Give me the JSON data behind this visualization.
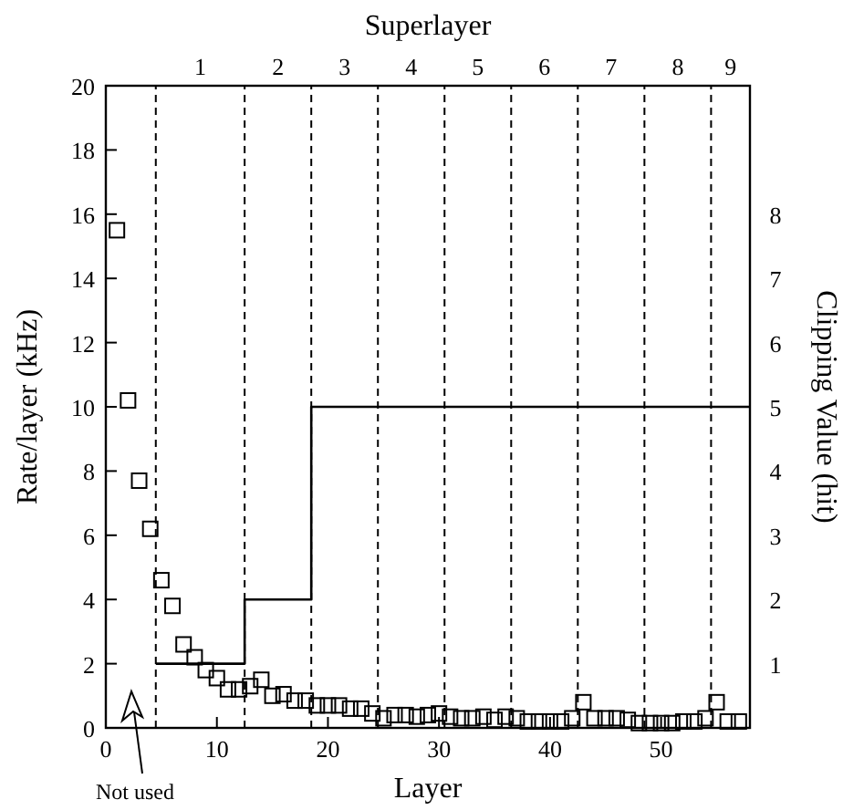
{
  "chart_data": {
    "type": "scatter",
    "xlabel": "Layer",
    "ylabel": "Rate/layer (kHz)",
    "y2label": "Clipping Value (hit)",
    "x2label": "Superlayer",
    "xlim": [
      0,
      58
    ],
    "xticks": [
      0,
      10,
      20,
      30,
      40,
      50
    ],
    "ylim": [
      0,
      20
    ],
    "yticks": [
      0,
      2,
      4,
      6,
      8,
      10,
      12,
      14,
      16,
      18,
      20
    ],
    "y2lim": [
      0,
      10
    ],
    "y2ticks": [
      1,
      2,
      3,
      4,
      5,
      6,
      7,
      8
    ],
    "marker": "square",
    "grid": false,
    "series": [
      {
        "color": "#000000",
        "x": [
          1,
          2,
          3,
          4,
          5,
          6,
          7,
          8,
          9,
          10,
          11,
          12,
          13,
          14,
          15,
          16,
          17,
          18,
          19,
          20,
          21,
          22,
          23,
          24,
          25,
          26,
          27,
          28,
          29,
          30,
          31,
          32,
          33,
          34,
          35,
          36,
          37,
          38,
          39,
          40,
          41,
          42,
          43,
          44,
          45,
          46,
          47,
          48,
          49,
          50,
          51,
          52,
          53,
          54,
          55,
          56,
          57
        ],
        "values": [
          15.5,
          10.2,
          7.7,
          6.2,
          4.6,
          3.8,
          2.6,
          2.2,
          1.8,
          1.55,
          1.2,
          1.2,
          1.3,
          1.5,
          1.0,
          1.05,
          0.85,
          0.85,
          0.7,
          0.7,
          0.7,
          0.6,
          0.6,
          0.45,
          0.3,
          0.4,
          0.4,
          0.35,
          0.4,
          0.45,
          0.35,
          0.3,
          0.3,
          0.35,
          0.25,
          0.35,
          0.3,
          0.2,
          0.2,
          0.2,
          0.2,
          0.3,
          0.8,
          0.3,
          0.3,
          0.3,
          0.25,
          0.15,
          0.15,
          0.15,
          0.15,
          0.2,
          0.2,
          0.3,
          0.8,
          0.2,
          0.2
        ]
      },
      {
        "type": "line",
        "marker": "none",
        "axis": "y2",
        "color": "#000000",
        "x": [
          4.5,
          12.5,
          12.5,
          18.5,
          18.5,
          58
        ],
        "values": [
          1,
          1,
          2,
          2,
          5,
          5
        ]
      }
    ],
    "ref_lines": [
      {
        "axis": "x",
        "value": 4.5,
        "line_style": "dashed"
      },
      {
        "axis": "x",
        "value": 12.5,
        "line_style": "dashed"
      },
      {
        "axis": "x",
        "value": 18.5,
        "line_style": "dashed"
      },
      {
        "axis": "x",
        "value": 24.5,
        "line_style": "dashed"
      },
      {
        "axis": "x",
        "value": 30.5,
        "line_style": "dashed"
      },
      {
        "axis": "x",
        "value": 36.5,
        "line_style": "dashed"
      },
      {
        "axis": "x",
        "value": 42.5,
        "line_style": "dashed"
      },
      {
        "axis": "x",
        "value": 48.5,
        "line_style": "dashed"
      },
      {
        "axis": "x",
        "value": 54.5,
        "line_style": "dashed"
      }
    ],
    "annotations": [
      "1",
      "2",
      "3",
      "4",
      "5",
      "6",
      "7",
      "8",
      "9",
      "Not used"
    ]
  }
}
